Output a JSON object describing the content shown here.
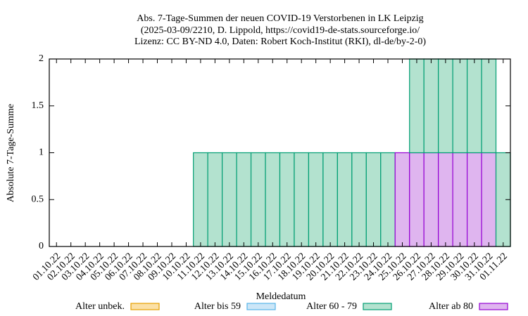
{
  "chart_data": {
    "type": "bar",
    "stacked": true,
    "title": [
      "Abs. 7-Tage-Summen der neuen COVID-19 Verstorbenen in LK Leipzig",
      "(2025-03-09/2210, D. Lippold, https://covid19-de-stats.sourceforge.io/",
      "Lizenz: CC BY-ND 4.0, Daten: Robert Koch-Institut (RKI), dl-de/by-2-0)"
    ],
    "x_label": "Meldedatum",
    "y_label": "Absolute 7-Tage-Summe",
    "categories": [
      "01.10.22",
      "02.10.22",
      "03.10.22",
      "04.10.22",
      "05.10.22",
      "06.10.22",
      "07.10.22",
      "08.10.22",
      "09.10.22",
      "10.10.22",
      "11.10.22",
      "12.10.22",
      "13.10.22",
      "14.10.22",
      "15.10.22",
      "16.10.22",
      "17.10.22",
      "18.10.22",
      "19.10.22",
      "20.10.22",
      "21.10.22",
      "22.10.22",
      "23.10.22",
      "24.10.22",
      "25.10.22",
      "26.10.22",
      "27.10.22",
      "28.10.22",
      "29.10.22",
      "30.10.22",
      "31.10.22",
      "01.11.22"
    ],
    "series": [
      {
        "name": "Alter unbek.",
        "color": "#fbe0a6",
        "edge": "#e69f00",
        "values": [
          0,
          0,
          0,
          0,
          0,
          0,
          0,
          0,
          0,
          0,
          0,
          0,
          0,
          0,
          0,
          0,
          0,
          0,
          0,
          0,
          0,
          0,
          0,
          0,
          0,
          0,
          0,
          0,
          0,
          0,
          0,
          0
        ]
      },
      {
        "name": "Alter bis 59",
        "color": "#cce6f7",
        "edge": "#56b4e9",
        "values": [
          0,
          0,
          0,
          0,
          0,
          0,
          0,
          0,
          0,
          0,
          0,
          0,
          0,
          0,
          0,
          0,
          0,
          0,
          0,
          0,
          0,
          0,
          0,
          0,
          0,
          0,
          0,
          0,
          0,
          0,
          0,
          0
        ]
      },
      {
        "name": "Alter ab 80",
        "color": "#dfb5ef",
        "edge": "#9400d3",
        "values": [
          0,
          0,
          0,
          0,
          0,
          0,
          0,
          0,
          0,
          0,
          0,
          0,
          0,
          0,
          0,
          0,
          0,
          0,
          0,
          0,
          0,
          0,
          0,
          0,
          1,
          1,
          1,
          1,
          1,
          1,
          1,
          0
        ]
      },
      {
        "name": "Alter 60 - 79",
        "color": "#b3e2cf",
        "edge": "#009e73",
        "values": [
          0,
          0,
          0,
          0,
          0,
          0,
          0,
          0,
          0,
          0,
          1,
          1,
          1,
          1,
          1,
          1,
          1,
          1,
          1,
          1,
          1,
          1,
          1,
          1,
          0,
          1,
          1,
          1,
          1,
          1,
          1,
          1
        ]
      }
    ],
    "legend_order": [
      0,
      1,
      3,
      2
    ],
    "ylim": [
      0,
      2
    ],
    "yticks": [
      0,
      0.5,
      1,
      1.5,
      2
    ],
    "grid": false
  }
}
